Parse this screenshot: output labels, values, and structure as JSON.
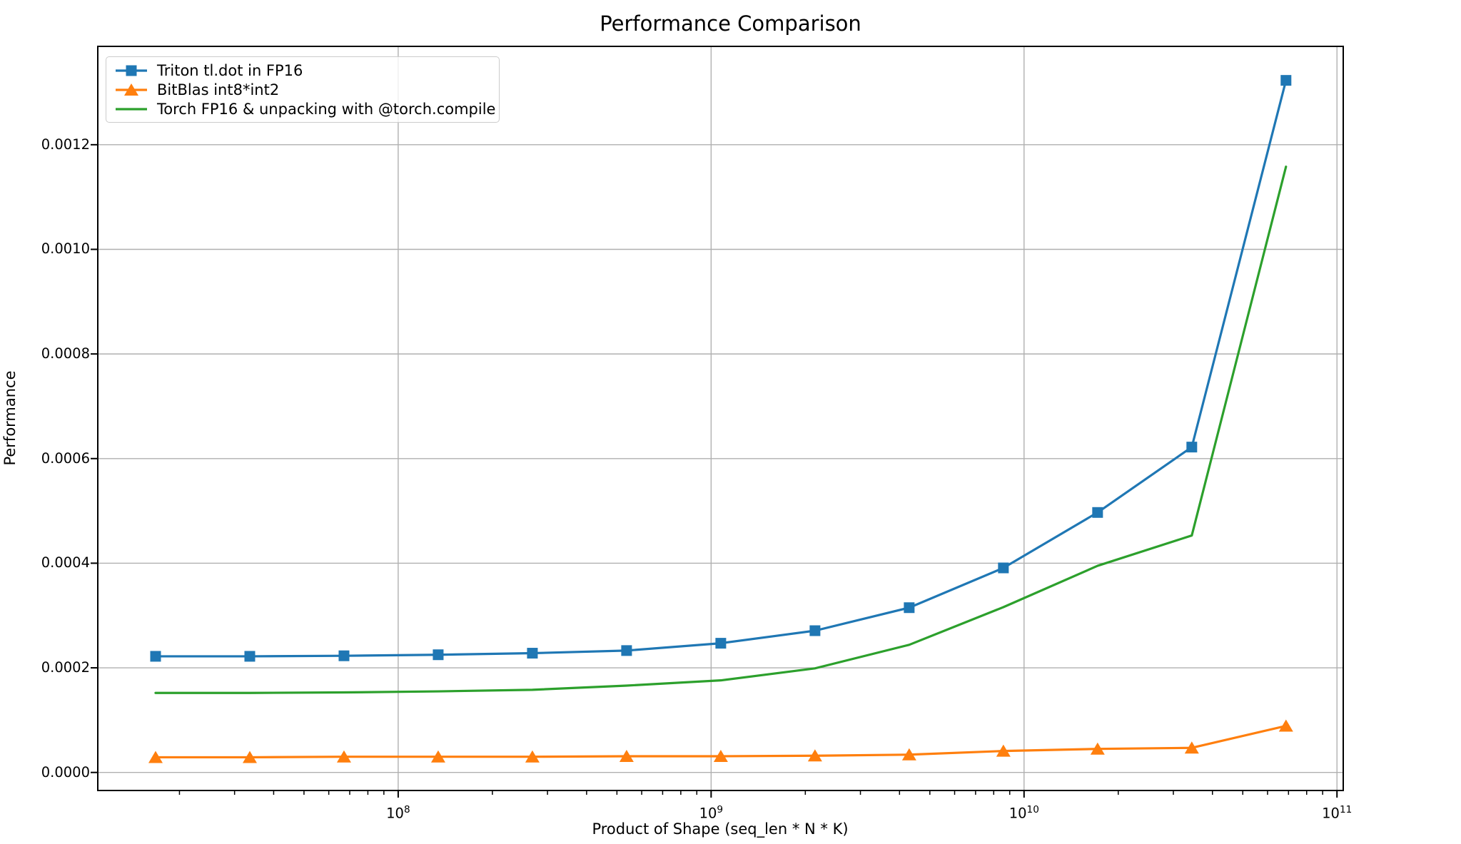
{
  "chart_data": {
    "type": "line",
    "title": "Performance Comparison",
    "xlabel": "Product of Shape (seq_len * N * K)",
    "ylabel": "Performance",
    "x_scale": "log",
    "grid": true,
    "legend_position": "upper left",
    "xlim_log10": [
      7.04,
      11.02
    ],
    "ylim": [
      -3.45e-05,
      0.001388
    ],
    "x_major_tick_exponents": [
      "8",
      "9",
      "10",
      "11"
    ],
    "x_tick_base": "10",
    "y_ticks": [
      0.0,
      0.0002,
      0.0004,
      0.0006,
      0.0008,
      0.001,
      0.0012
    ],
    "y_tick_labels": [
      "0.0000",
      "0.0002",
      "0.0004",
      "0.0006",
      "0.0008",
      "0.0010",
      "0.0012"
    ],
    "colors": {
      "grid": "#b0b0b0",
      "spine": "#000000",
      "background": "#ffffff",
      "legend_border": "#cccccc"
    },
    "x": [
      16777216,
      33554432,
      67108864,
      134217728,
      268435456,
      536870912,
      1073741824,
      2147483648,
      4294967296,
      8589934592,
      17179869184,
      34359738368,
      68719476736
    ],
    "series": [
      {
        "name": "Triton tl.dot in FP16",
        "color": "#1f77b4",
        "marker": "square",
        "values": [
          0.000222,
          0.000222,
          0.000223,
          0.000225,
          0.000228,
          0.000233,
          0.000247,
          0.000271,
          0.000315,
          0.000391,
          0.000497,
          0.000622,
          0.001323
        ]
      },
      {
        "name": "BitBlas int8*int2",
        "color": "#ff7f0e",
        "marker": "triangle",
        "values": [
          2.9e-05,
          2.9e-05,
          3e-05,
          3e-05,
          3e-05,
          3.1e-05,
          3.1e-05,
          3.2e-05,
          3.4e-05,
          4.1e-05,
          4.5e-05,
          4.7e-05,
          8.9e-05
        ]
      },
      {
        "name": "Torch FP16 & unpacking with @torch.compile",
        "color": "#2ca02c",
        "marker": "none",
        "values": [
          0.000152,
          0.000152,
          0.000153,
          0.000155,
          0.000158,
          0.000166,
          0.000176,
          0.000199,
          0.000244,
          0.000316,
          0.000395,
          0.000453,
          0.001158
        ]
      }
    ]
  }
}
